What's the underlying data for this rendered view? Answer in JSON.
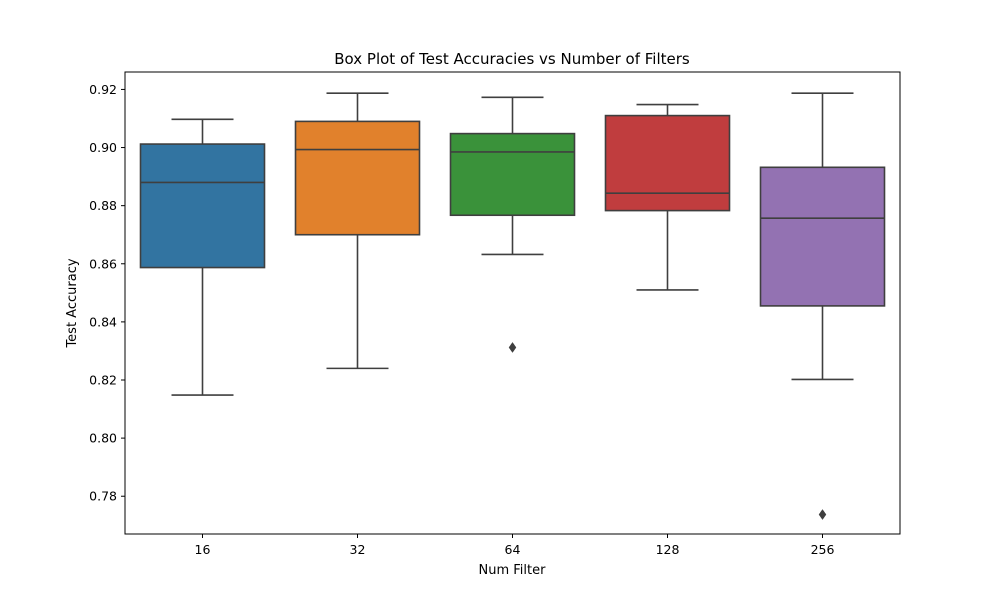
{
  "chart_data": {
    "type": "box",
    "title": "Box Plot of Test Accuracies vs Number of Filters",
    "xlabel": "Num Filter",
    "ylabel": "Test Accuracy",
    "ylim": [
      0.767,
      0.926
    ],
    "yticks": [
      "0.78",
      "0.80",
      "0.82",
      "0.84",
      "0.86",
      "0.88",
      "0.90",
      "0.92"
    ],
    "ytick_values": [
      0.78,
      0.8,
      0.82,
      0.84,
      0.86,
      0.88,
      0.9,
      0.92
    ],
    "categories": [
      "16",
      "32",
      "64",
      "128",
      "256"
    ],
    "grid": false,
    "legend": "none",
    "series": [
      {
        "category": "16",
        "color": "#3274a1",
        "whisker_low": 0.8148,
        "q1": 0.8587,
        "median": 0.888,
        "q3": 0.9012,
        "whisker_high": 0.9097,
        "outliers": []
      },
      {
        "category": "32",
        "color": "#e1812c",
        "whisker_low": 0.824,
        "q1": 0.87,
        "median": 0.8993,
        "q3": 0.909,
        "whisker_high": 0.9187,
        "outliers": []
      },
      {
        "category": "64",
        "color": "#3a923a",
        "whisker_low": 0.8632,
        "q1": 0.8767,
        "median": 0.8985,
        "q3": 0.9048,
        "whisker_high": 0.9173,
        "outliers": [
          0.8312
        ]
      },
      {
        "category": "128",
        "color": "#c03d3e",
        "whisker_low": 0.851,
        "q1": 0.8783,
        "median": 0.8843,
        "q3": 0.911,
        "whisker_high": 0.9148,
        "outliers": []
      },
      {
        "category": "256",
        "color": "#9372b2",
        "whisker_low": 0.8202,
        "q1": 0.8455,
        "median": 0.8757,
        "q3": 0.8932,
        "whisker_high": 0.9187,
        "outliers": [
          0.7737
        ]
      }
    ]
  }
}
